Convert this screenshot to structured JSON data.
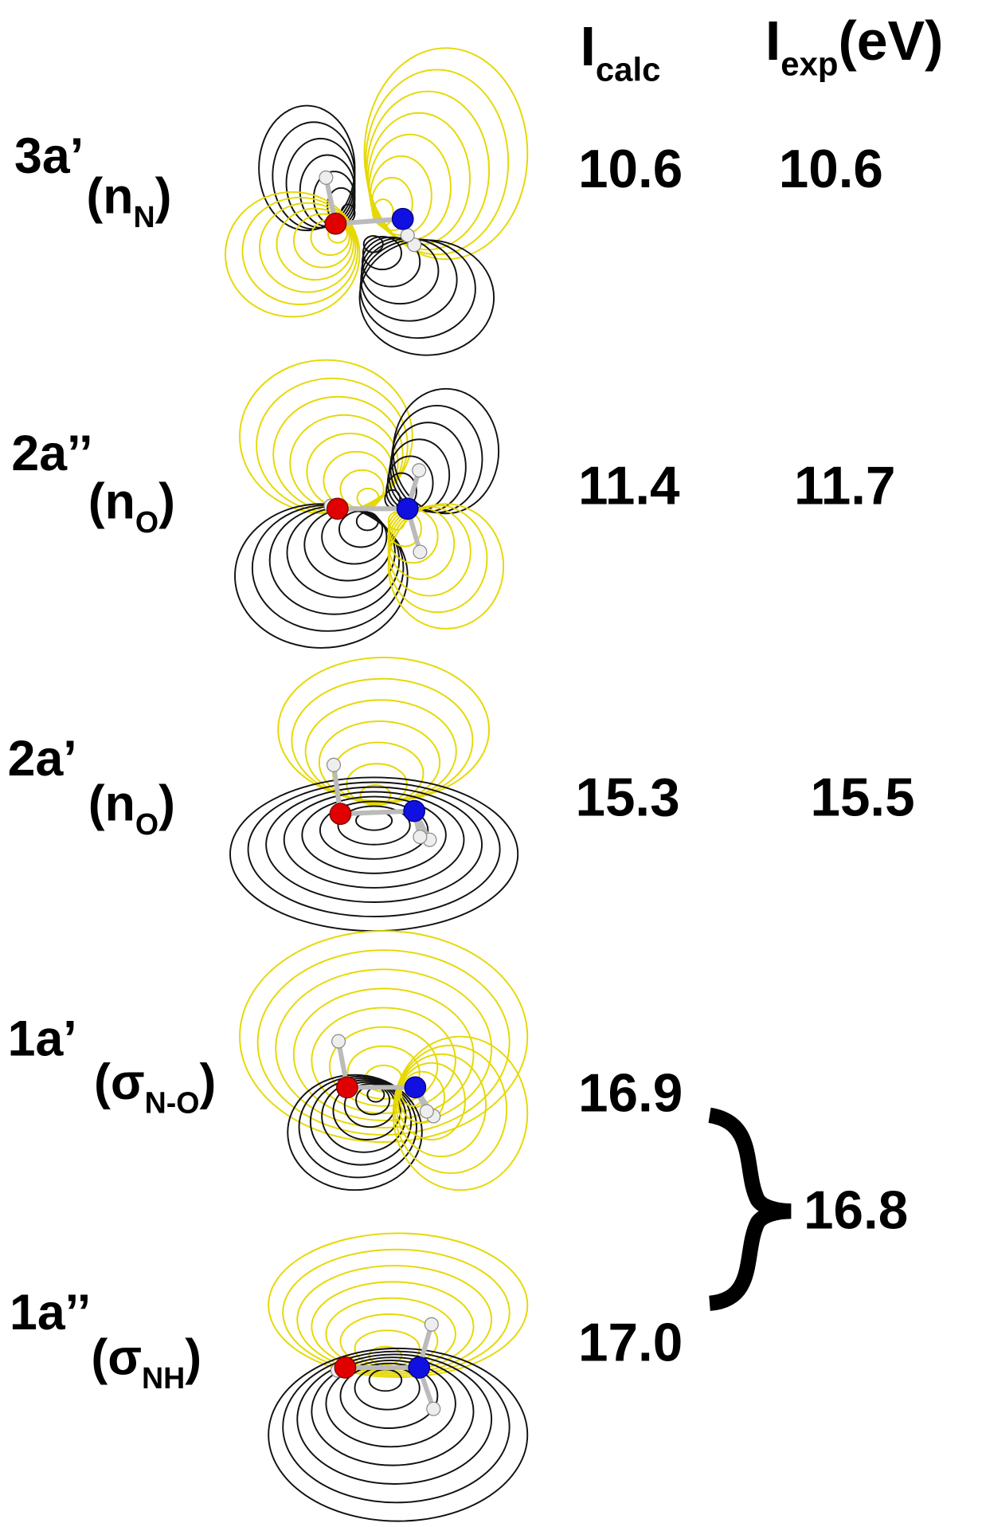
{
  "header": {
    "calc": {
      "main": "I",
      "sub": "calc"
    },
    "exp": {
      "main": "I",
      "sub": "exp",
      "suffix": "(eV)"
    }
  },
  "rows": [
    {
      "label": "3a’",
      "orbital": {
        "prefix": "(n",
        "sub": "N",
        "suffix": ")"
      },
      "calc": "10.6",
      "exp": "10.6"
    },
    {
      "label": "2a’’",
      "orbital": {
        "prefix": "(n",
        "sub": "O",
        "suffix": ")"
      },
      "calc": "11.4",
      "exp": "11.7"
    },
    {
      "label": "2a’",
      "orbital": {
        "prefix": "(n",
        "sub": "O",
        "suffix": ")"
      },
      "calc": "15.3",
      "exp": "15.5"
    },
    {
      "label": "1a’",
      "orbital": {
        "prefix": "(σ",
        "sub": "N-O",
        "suffix": ")"
      },
      "calc": "16.9"
    },
    {
      "label": "1a’’",
      "orbital": {
        "prefix": "(σ",
        "sub": "NH",
        "suffix": ")"
      },
      "calc": "17.0"
    }
  ],
  "combined_exp": "16.8"
}
